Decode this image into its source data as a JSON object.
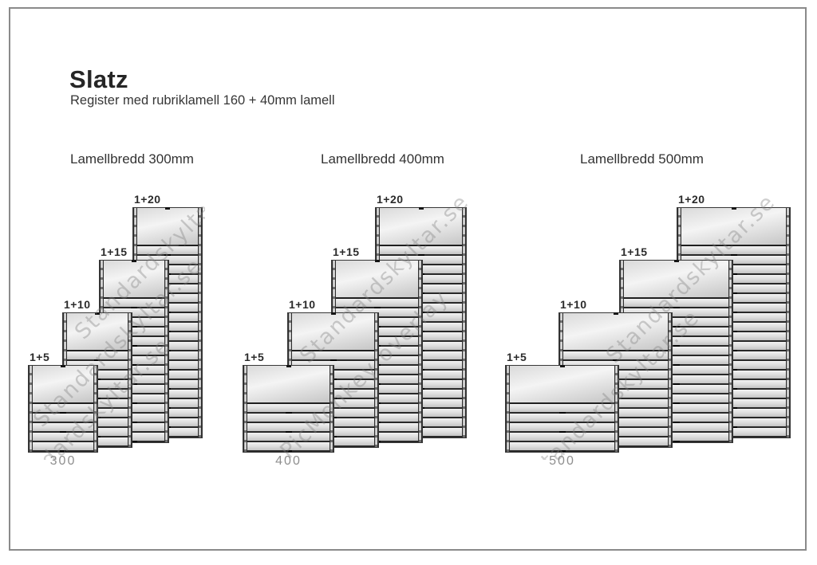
{
  "header": {
    "title": "Slatz",
    "subtitle": "Register med rubriklamell 160 + 40mm lamell"
  },
  "groups": [
    {
      "heading": "Lamellbredd 300mm",
      "width_label": "300",
      "units": [
        {
          "label": "1+5",
          "strips": 5
        },
        {
          "label": "1+10",
          "strips": 10
        },
        {
          "label": "1+15",
          "strips": 15
        },
        {
          "label": "1+20",
          "strips": 20
        }
      ]
    },
    {
      "heading": "Lamellbredd 400mm",
      "width_label": "400",
      "units": [
        {
          "label": "1+5",
          "strips": 5
        },
        {
          "label": "1+10",
          "strips": 10
        },
        {
          "label": "1+15",
          "strips": 15
        },
        {
          "label": "1+20",
          "strips": 20
        }
      ]
    },
    {
      "heading": "Lamellbredd 500mm",
      "width_label": "500",
      "units": [
        {
          "label": "1+5",
          "strips": 5
        },
        {
          "label": "1+10",
          "strips": 10
        },
        {
          "label": "1+15",
          "strips": 15
        },
        {
          "label": "1+20",
          "strips": 20
        }
      ]
    }
  ],
  "watermarks": {
    "brand": "Standardskyltar.se",
    "editor": "PicMonkey overlay"
  },
  "colors": {
    "frame_border": "#8a8a8a",
    "panel_light": "#f2f2f2",
    "panel_dark": "#c3c3c3",
    "separator": "#282828",
    "width_label_gray": "#8f8f8f"
  }
}
